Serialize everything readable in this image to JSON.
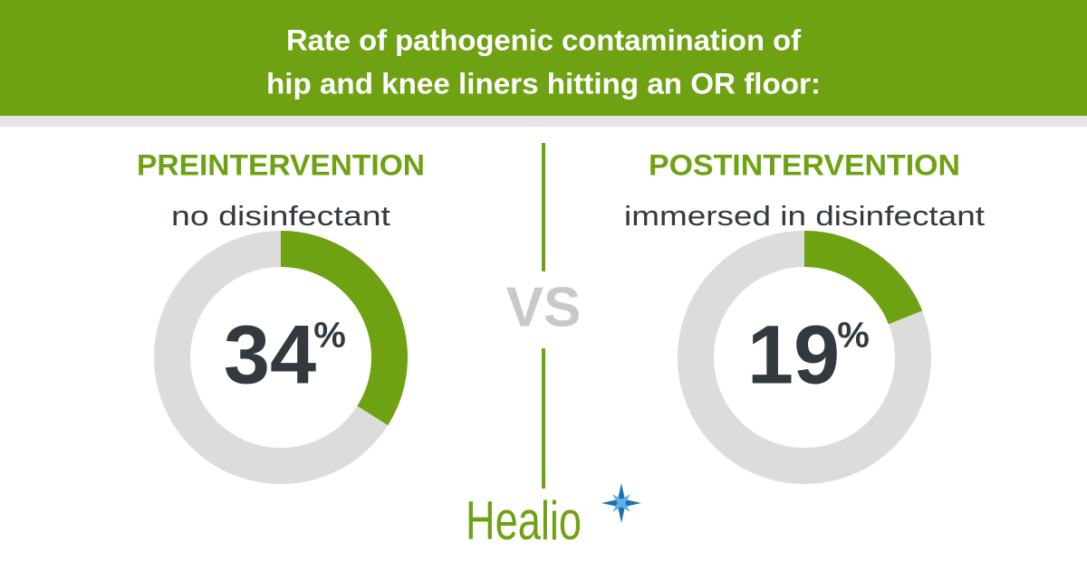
{
  "title": [
    "Rate of pathogenic contamination of",
    "hip and knee liners hitting an OR floor:"
  ],
  "chart_data": [
    {
      "type": "donut",
      "title": "PREINTERVENTION",
      "subtitle": "no disinfectant",
      "values": [
        34
      ],
      "unit": "%",
      "ylim": [
        0,
        100
      ],
      "color": "#6ea213",
      "track_color": "#dcdcdc"
    },
    {
      "type": "donut",
      "title": "POSTINTERVENTION",
      "subtitle": "immersed in disinfectant",
      "values": [
        19
      ],
      "unit": "%",
      "ylim": [
        0,
        100
      ],
      "color": "#6ea213",
      "track_color": "#dcdcdc"
    }
  ],
  "separator": "VS",
  "logo": "Healio"
}
